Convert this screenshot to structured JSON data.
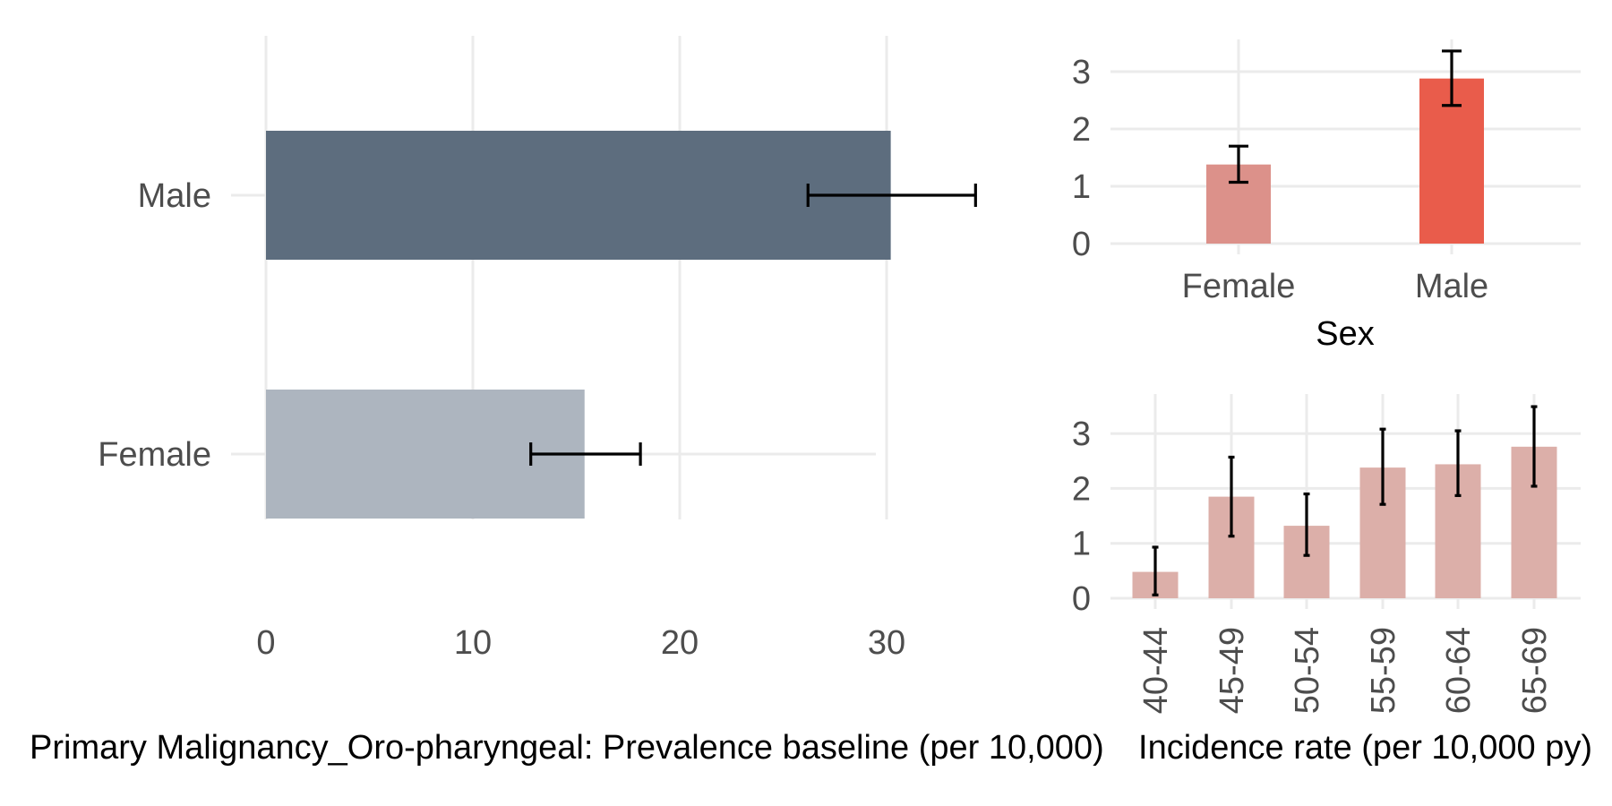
{
  "colors": {
    "left_male": "#5d6d7e",
    "left_female": "#adb5bf",
    "sex_female": "#dc918a",
    "sex_male": "#e95c4b",
    "age_bars": "#dcafa9",
    "error_bar": "#000000",
    "grid": "#ebebeb"
  },
  "chart_data": [
    {
      "type": "bar",
      "orientation": "horizontal",
      "categories": [
        "Female",
        "Male"
      ],
      "values": [
        15.4,
        30.2
      ],
      "error_low": [
        12.8,
        26.2
      ],
      "error_high": [
        18.1,
        34.3
      ],
      "xlabel": "Primary Malignancy_Oro-pharyngeal: Prevalence baseline (per 10,000)",
      "xticks": [
        "0",
        "10",
        "20",
        "30"
      ],
      "xlim": [
        0,
        36
      ],
      "grid": true
    },
    {
      "type": "bar",
      "categories": [
        "Female",
        "Male"
      ],
      "values": [
        1.38,
        2.88
      ],
      "error_low": [
        1.07,
        2.41
      ],
      "error_high": [
        1.7,
        3.36
      ],
      "xlabel": "Sex",
      "yticks": [
        "0",
        "1",
        "2",
        "3"
      ],
      "ylim": [
        0,
        3.6
      ],
      "grid": true
    },
    {
      "type": "bar",
      "categories": [
        "40-44",
        "45-49",
        "50-54",
        "55-59",
        "60-64",
        "65-69"
      ],
      "values": [
        0.48,
        1.85,
        1.32,
        2.38,
        2.44,
        2.76
      ],
      "error_low": [
        0.06,
        1.13,
        0.78,
        1.71,
        1.87,
        2.04
      ],
      "error_high": [
        0.93,
        2.57,
        1.9,
        3.08,
        3.05,
        3.49
      ],
      "xlabel": "Incidence rate (per 10,000 py)",
      "yticks": [
        "0",
        "1",
        "2",
        "3"
      ],
      "ylim": [
        0,
        3.6
      ],
      "grid": true
    }
  ]
}
